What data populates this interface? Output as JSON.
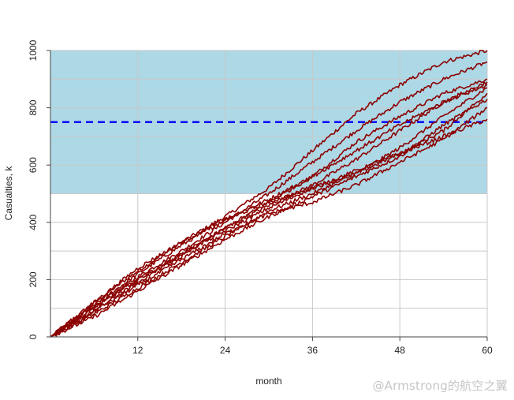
{
  "chart_data": {
    "type": "line",
    "title": "",
    "xlabel": "month",
    "ylabel": "Casualties, k",
    "xlim": [
      0,
      60
    ],
    "ylim": [
      0,
      1000
    ],
    "x_ticks": [
      12,
      24,
      36,
      48,
      60
    ],
    "y_ticks": [
      0,
      200,
      400,
      600,
      800,
      1000
    ],
    "grid": true,
    "shaded_band": {
      "y_from": 500,
      "y_to": 1000,
      "color": "#add8e6"
    },
    "reference_line": {
      "y": 750,
      "color": "#0000ff",
      "style": "dashed"
    },
    "series_color": "#8b0000",
    "series": [
      {
        "x": [
          0,
          6,
          12,
          18,
          24,
          30,
          36,
          42,
          48,
          54,
          60
        ],
        "values": [
          0,
          120,
          230,
          330,
          420,
          520,
          650,
          780,
          880,
          960,
          1000
        ]
      },
      {
        "x": [
          0,
          6,
          12,
          18,
          24,
          30,
          36,
          42,
          48,
          54,
          60
        ],
        "values": [
          0,
          100,
          210,
          300,
          400,
          500,
          610,
          720,
          820,
          900,
          960
        ]
      },
      {
        "x": [
          0,
          6,
          12,
          18,
          24,
          30,
          36,
          42,
          48,
          54,
          60
        ],
        "values": [
          0,
          110,
          220,
          320,
          410,
          480,
          560,
          680,
          770,
          850,
          900
        ]
      },
      {
        "x": [
          0,
          6,
          12,
          18,
          24,
          30,
          36,
          42,
          48,
          54,
          60
        ],
        "values": [
          0,
          90,
          190,
          290,
          380,
          460,
          530,
          620,
          720,
          820,
          880
        ]
      },
      {
        "x": [
          0,
          6,
          12,
          18,
          24,
          30,
          36,
          42,
          48,
          54,
          60
        ],
        "values": [
          0,
          80,
          170,
          260,
          350,
          440,
          500,
          570,
          660,
          770,
          870
        ]
      },
      {
        "x": [
          0,
          6,
          12,
          18,
          24,
          30,
          36,
          42,
          48,
          54,
          60
        ],
        "values": [
          0,
          120,
          240,
          330,
          410,
          470,
          520,
          570,
          640,
          720,
          850
        ]
      },
      {
        "x": [
          0,
          6,
          12,
          18,
          24,
          30,
          36,
          42,
          48,
          54,
          60
        ],
        "values": [
          0,
          70,
          160,
          250,
          340,
          420,
          490,
          560,
          630,
          740,
          830
        ]
      },
      {
        "x": [
          0,
          6,
          12,
          18,
          24,
          30,
          36,
          42,
          48,
          54,
          60
        ],
        "values": [
          0,
          100,
          200,
          290,
          370,
          450,
          520,
          580,
          640,
          700,
          760
        ]
      },
      {
        "x": [
          0,
          6,
          12,
          18,
          24,
          30,
          36,
          42,
          48,
          54,
          60
        ],
        "values": [
          0,
          90,
          180,
          270,
          360,
          430,
          470,
          530,
          610,
          690,
          800
        ]
      },
      {
        "x": [
          0,
          6,
          12,
          18,
          24,
          30,
          36,
          42,
          48,
          54,
          60
        ],
        "values": [
          0,
          110,
          200,
          280,
          380,
          470,
          560,
          650,
          740,
          820,
          890
        ]
      }
    ]
  },
  "watermark": "@Armstrong的航空之翼"
}
